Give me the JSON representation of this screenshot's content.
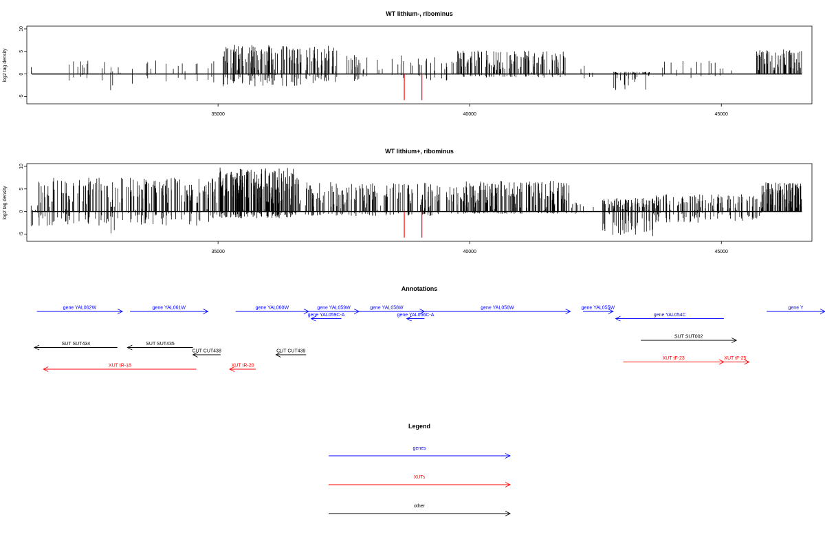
{
  "chart_data": [
    {
      "type": "bar",
      "title": "WT lithium-, ribominus",
      "ylabel": "log2 tag density",
      "xlabel": "",
      "xlim": [
        31200,
        46800
      ],
      "ylim": [
        -6,
        10
      ],
      "x_ticks": [
        35000,
        40000,
        45000
      ],
      "y_ticks": [
        -5,
        0,
        5,
        10
      ],
      "grid": false,
      "highlight_lines": {
        "color": "#ff0000",
        "x": [
          38700,
          39050
        ],
        "y0": 0,
        "y1": -5.8
      },
      "segments": [
        {
          "from": 31280,
          "to": 31320,
          "density": 2,
          "max": 3.8,
          "min": 0,
          "seed": 11
        },
        {
          "from": 31900,
          "to": 33200,
          "density": 14,
          "max": 3.2,
          "min": -1.5,
          "seed": 12
        },
        {
          "from": 32850,
          "to": 32950,
          "density": 3,
          "max": 2.5,
          "min": -3.8,
          "seed": 13
        },
        {
          "from": 33200,
          "to": 34800,
          "density": 12,
          "max": 3.5,
          "min": -2.8,
          "seed": 14
        },
        {
          "from": 34800,
          "to": 35100,
          "density": 4,
          "max": 3.2,
          "min": -3.2,
          "seed": 15
        },
        {
          "from": 35100,
          "to": 37400,
          "density": 150,
          "max": 6.5,
          "min": -2.8,
          "seed": 16
        },
        {
          "from": 37400,
          "to": 39700,
          "density": 40,
          "max": 4.2,
          "min": -1.8,
          "seed": 17
        },
        {
          "from": 39700,
          "to": 41900,
          "density": 120,
          "max": 5.2,
          "min": -0.8,
          "seed": 18
        },
        {
          "from": 41900,
          "to": 42800,
          "density": 6,
          "max": 2.2,
          "min": -1.0,
          "seed": 19
        },
        {
          "from": 42800,
          "to": 43600,
          "density": 40,
          "max": 0.5,
          "min": -3.8,
          "seed": 20
        },
        {
          "from": 43600,
          "to": 45700,
          "density": 14,
          "max": 3.0,
          "min": -1.0,
          "seed": 21
        },
        {
          "from": 45700,
          "to": 46600,
          "density": 70,
          "max": 5.5,
          "min": 0,
          "seed": 22
        }
      ]
    },
    {
      "type": "bar",
      "title": "WT lithium+, ribominus",
      "ylabel": "log2 tag density",
      "xlabel": "",
      "xlim": [
        31200,
        46800
      ],
      "ylim": [
        -6,
        10
      ],
      "x_ticks": [
        35000,
        40000,
        45000
      ],
      "y_ticks": [
        -5,
        0,
        5,
        10
      ],
      "grid": false,
      "highlight_lines": {
        "color": "#ff0000",
        "x": [
          38700,
          39050
        ],
        "y0": 0,
        "y1": -5.8
      },
      "segments": [
        {
          "from": 31280,
          "to": 31420,
          "density": 6,
          "max": 1.5,
          "min": -3.8,
          "seed": 31
        },
        {
          "from": 31420,
          "to": 35000,
          "density": 180,
          "max": 7.5,
          "min": -3.2,
          "seed": 32
        },
        {
          "from": 32850,
          "to": 32950,
          "density": 3,
          "max": 2.5,
          "min": -5.5,
          "seed": 33
        },
        {
          "from": 35000,
          "to": 36600,
          "density": 190,
          "max": 9.8,
          "min": -1.5,
          "seed": 34
        },
        {
          "from": 36600,
          "to": 39800,
          "density": 160,
          "max": 6.5,
          "min": -1.0,
          "seed": 35
        },
        {
          "from": 39800,
          "to": 42000,
          "density": 170,
          "max": 6.8,
          "min": -0.5,
          "seed": 36
        },
        {
          "from": 42000,
          "to": 42600,
          "density": 8,
          "max": 2.0,
          "min": -0.5,
          "seed": 37
        },
        {
          "from": 42600,
          "to": 43700,
          "density": 80,
          "max": 3.0,
          "min": -5.5,
          "seed": 38
        },
        {
          "from": 43700,
          "to": 45800,
          "density": 100,
          "max": 3.8,
          "min": -2.5,
          "seed": 39
        },
        {
          "from": 45800,
          "to": 46600,
          "density": 100,
          "max": 6.5,
          "min": 0,
          "seed": 40
        }
      ]
    }
  ],
  "annotations": {
    "title": "Annotations",
    "features": [
      {
        "label": "gene YAL062W",
        "from": 31400,
        "to": 33100,
        "row": 0,
        "strand": "+",
        "color": "#0000ff"
      },
      {
        "label": "gene YAL061W",
        "from": 33250,
        "to": 34800,
        "row": 0,
        "strand": "+",
        "color": "#0000ff"
      },
      {
        "label": "gene YAL060W",
        "from": 35350,
        "to": 36800,
        "row": 0,
        "strand": "+",
        "color": "#0000ff"
      },
      {
        "label": "gene YAL059W",
        "from": 36800,
        "to": 37800,
        "row": 0,
        "strand": "+",
        "color": "#0000ff"
      },
      {
        "label": "gene YAL059C-A",
        "from": 36850,
        "to": 37450,
        "row": 1,
        "strand": "-",
        "color": "#0000ff"
      },
      {
        "label": "gene YAL058W",
        "from": 37600,
        "to": 39100,
        "row": 0,
        "strand": "+",
        "color": "#0000ff"
      },
      {
        "label": "gene YAL056C-A",
        "from": 38750,
        "to": 39100,
        "row": 1,
        "strand": "-",
        "color": "#0000ff"
      },
      {
        "label": "gene YAL056W",
        "from": 39100,
        "to": 42000,
        "row": 0,
        "strand": "+",
        "color": "#0000ff"
      },
      {
        "label": "gene YAL055W",
        "from": 42250,
        "to": 42850,
        "row": 0,
        "strand": "+",
        "color": "#0000ff"
      },
      {
        "label": "gene YAL054C",
        "from": 42900,
        "to": 45050,
        "row": 1,
        "strand": "-",
        "color": "#0000ff"
      },
      {
        "label": "gene Y",
        "from": 45900,
        "to": 48500,
        "row": 0,
        "strand": "+",
        "color": "#0000ff"
      },
      {
        "label": "SUT SUT434",
        "from": 31350,
        "to": 33000,
        "row": 5,
        "strand": "-",
        "color": "#000000"
      },
      {
        "label": "SUT SUT435",
        "from": 33200,
        "to": 34500,
        "row": 5,
        "strand": "-",
        "color": "#000000"
      },
      {
        "label": "SUT SUT002",
        "from": 43400,
        "to": 45300,
        "row": 4,
        "strand": "+",
        "color": "#000000"
      },
      {
        "label": "CUT CUT438",
        "from": 34500,
        "to": 35050,
        "row": 6,
        "strand": "-",
        "color": "#000000"
      },
      {
        "label": "CUT CUT439",
        "from": 36150,
        "to": 36750,
        "row": 6,
        "strand": "-",
        "color": "#000000"
      },
      {
        "label": "XUT tR-18",
        "from": 31530,
        "to": 34570,
        "row": 8,
        "strand": "-",
        "color": "#ff0000"
      },
      {
        "label": "XUT tR-20",
        "from": 35230,
        "to": 35750,
        "row": 8,
        "strand": "-",
        "color": "#ff0000"
      },
      {
        "label": "XUT tF-23",
        "from": 43050,
        "to": 45050,
        "row": 7,
        "strand": "+",
        "color": "#ff0000"
      },
      {
        "label": "XUT tF-25",
        "from": 45000,
        "to": 45550,
        "row": 7,
        "strand": "+",
        "color": "#ff0000"
      }
    ]
  },
  "legend": {
    "title": "Legend",
    "items": [
      {
        "label": "genes",
        "color": "#0000ff"
      },
      {
        "label": "XUTs",
        "color": "#ff0000"
      },
      {
        "label": "other",
        "color": "#000000"
      }
    ]
  }
}
